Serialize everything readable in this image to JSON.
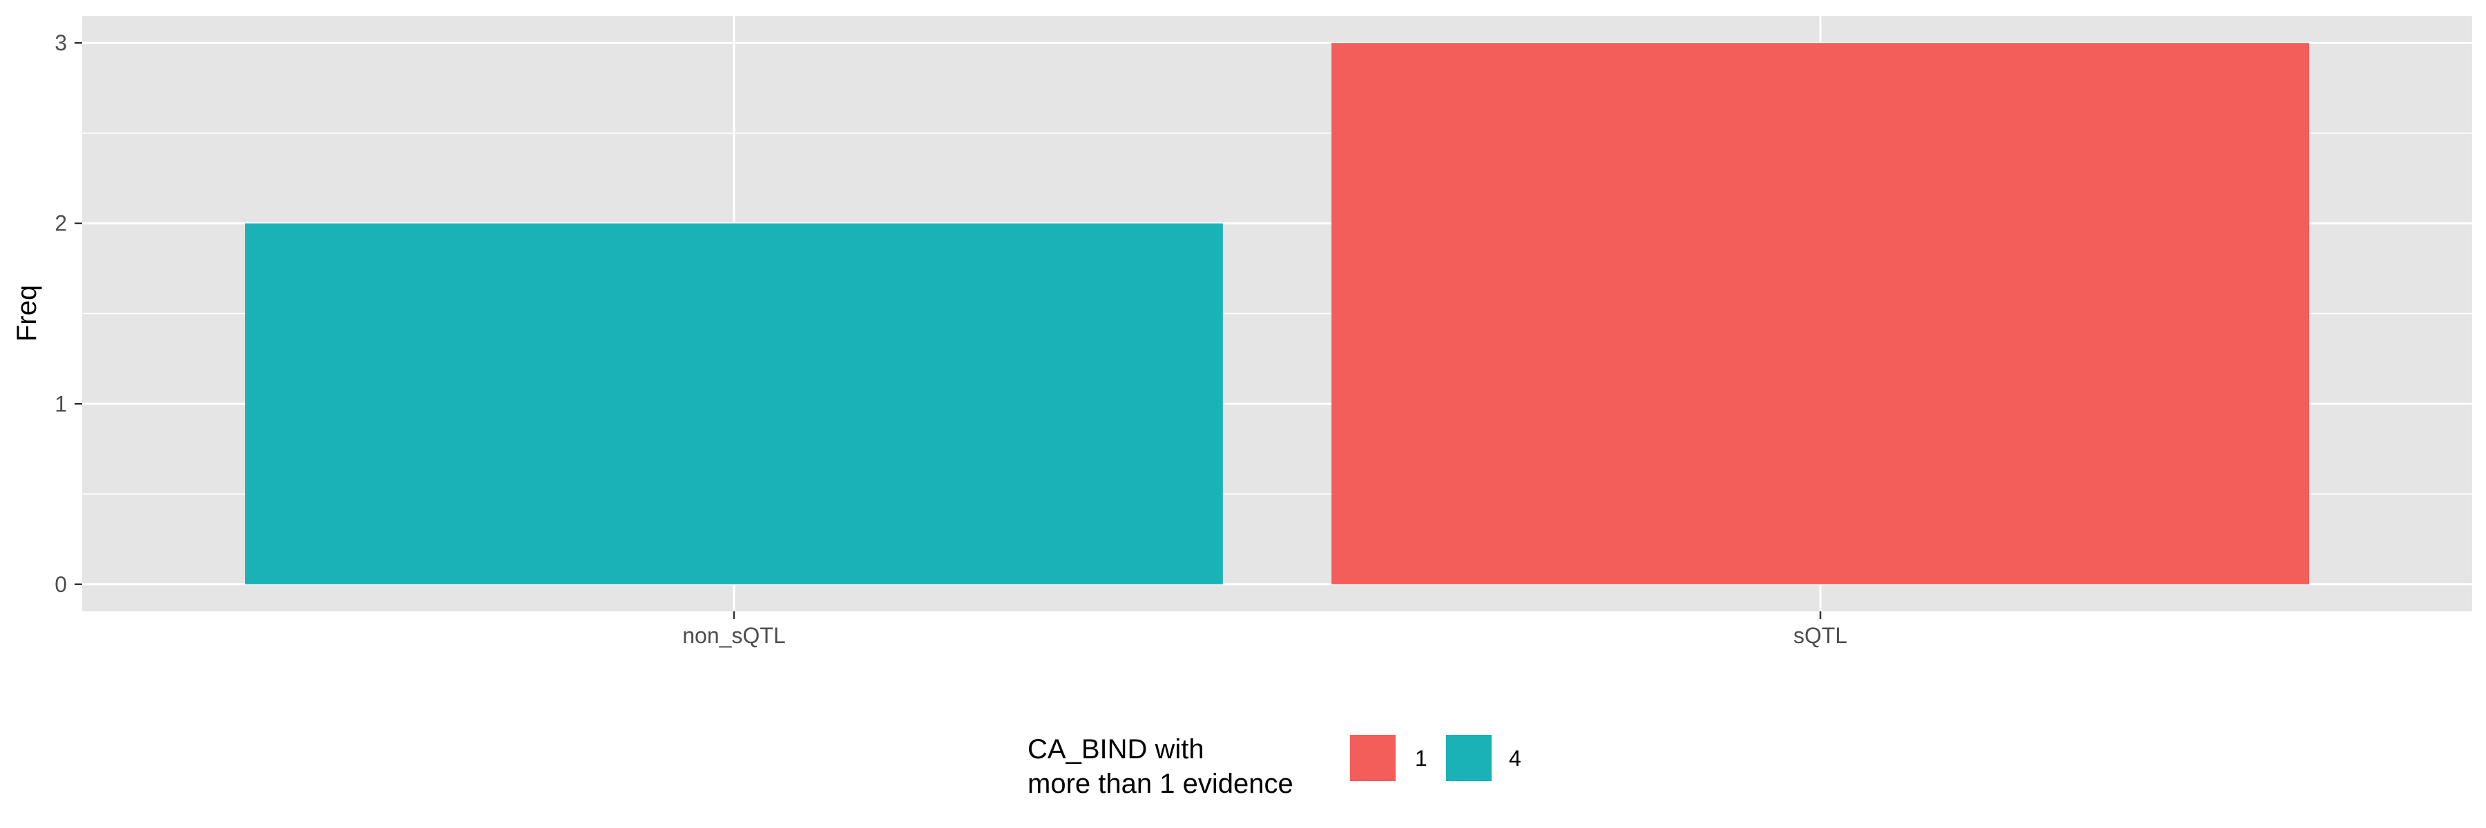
{
  "chart_data": {
    "type": "bar",
    "categories": [
      "non_sQTL",
      "sQTL"
    ],
    "bars": [
      {
        "category": "non_sQTL",
        "group": "4",
        "value": 2
      },
      {
        "category": "sQTL",
        "group": "1",
        "value": 3
      }
    ],
    "ylabel": "Freq",
    "xlabel": "",
    "ylim": [
      -0.15,
      3.15
    ],
    "yticks": [
      0,
      1,
      2,
      3
    ],
    "grid": true,
    "legend": {
      "title_lines": [
        "CA_BIND with",
        "more than 1 evidence"
      ],
      "position": "bottom",
      "entries": [
        {
          "label": "1",
          "color": "#F35E5A"
        },
        {
          "label": "4",
          "color": "#19B3B7"
        }
      ]
    },
    "colors": {
      "panel": "#e5e5e5",
      "grid": "#ffffff"
    }
  }
}
